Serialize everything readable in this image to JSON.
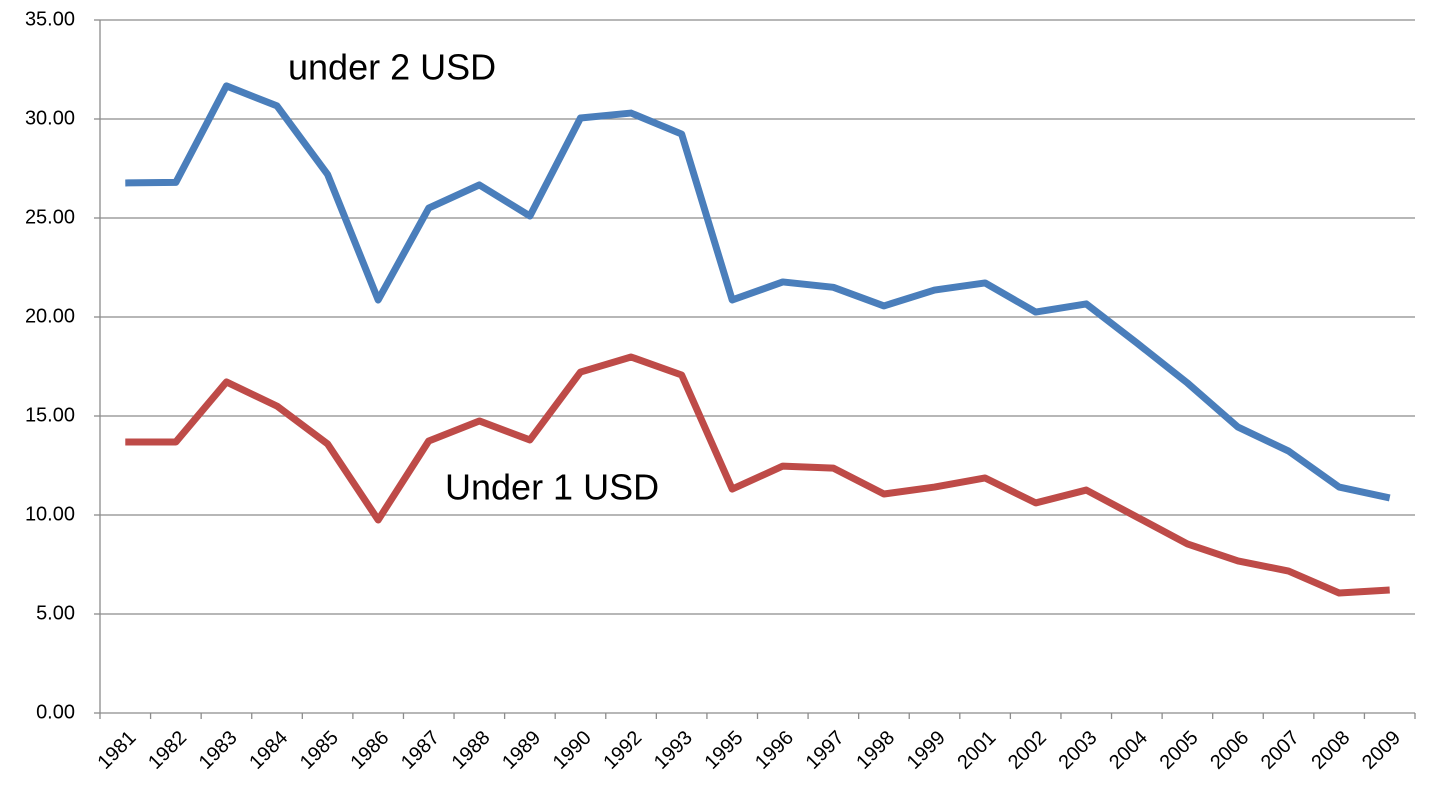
{
  "chart_data": {
    "type": "line",
    "categories": [
      "1981",
      "1982",
      "1983",
      "1984",
      "1985",
      "1986",
      "1987",
      "1988",
      "1989",
      "1990",
      "1992",
      "1993",
      "1995",
      "1996",
      "1997",
      "1998",
      "1999",
      "2001",
      "2002",
      "2003",
      "2004",
      "2005",
      "2006",
      "2007",
      "2008",
      "2009"
    ],
    "series": [
      {
        "name": "under 2 USD",
        "color": "#4a7ebb",
        "values": [
          26.77,
          26.8,
          31.67,
          30.66,
          27.2,
          20.86,
          25.5,
          26.67,
          25.1,
          30.05,
          30.3,
          29.24,
          20.86,
          21.77,
          21.5,
          20.56,
          21.36,
          21.72,
          20.25,
          20.66,
          18.69,
          16.67,
          14.44,
          13.23,
          11.41,
          10.86
        ]
      },
      {
        "name": "Under 1 USD",
        "color": "#be4b48",
        "values": [
          13.69,
          13.69,
          16.72,
          15.5,
          13.59,
          9.75,
          13.74,
          14.75,
          13.79,
          17.22,
          17.98,
          17.07,
          11.31,
          12.47,
          12.37,
          11.06,
          11.41,
          11.87,
          10.61,
          11.26,
          9.9,
          8.54,
          7.68,
          7.17,
          6.06,
          6.21
        ]
      }
    ],
    "ylim": [
      0,
      35
    ],
    "yticks": [
      {
        "value": 0,
        "label": "0.00"
      },
      {
        "value": 5,
        "label": "5.00"
      },
      {
        "value": 10,
        "label": "10.00"
      },
      {
        "value": 15,
        "label": "15.00"
      },
      {
        "value": 20,
        "label": "20.00"
      },
      {
        "value": 25,
        "label": "25.00"
      },
      {
        "value": 30,
        "label": "30.00"
      },
      {
        "value": 35,
        "label": "35.00"
      }
    ],
    "grid": true
  }
}
